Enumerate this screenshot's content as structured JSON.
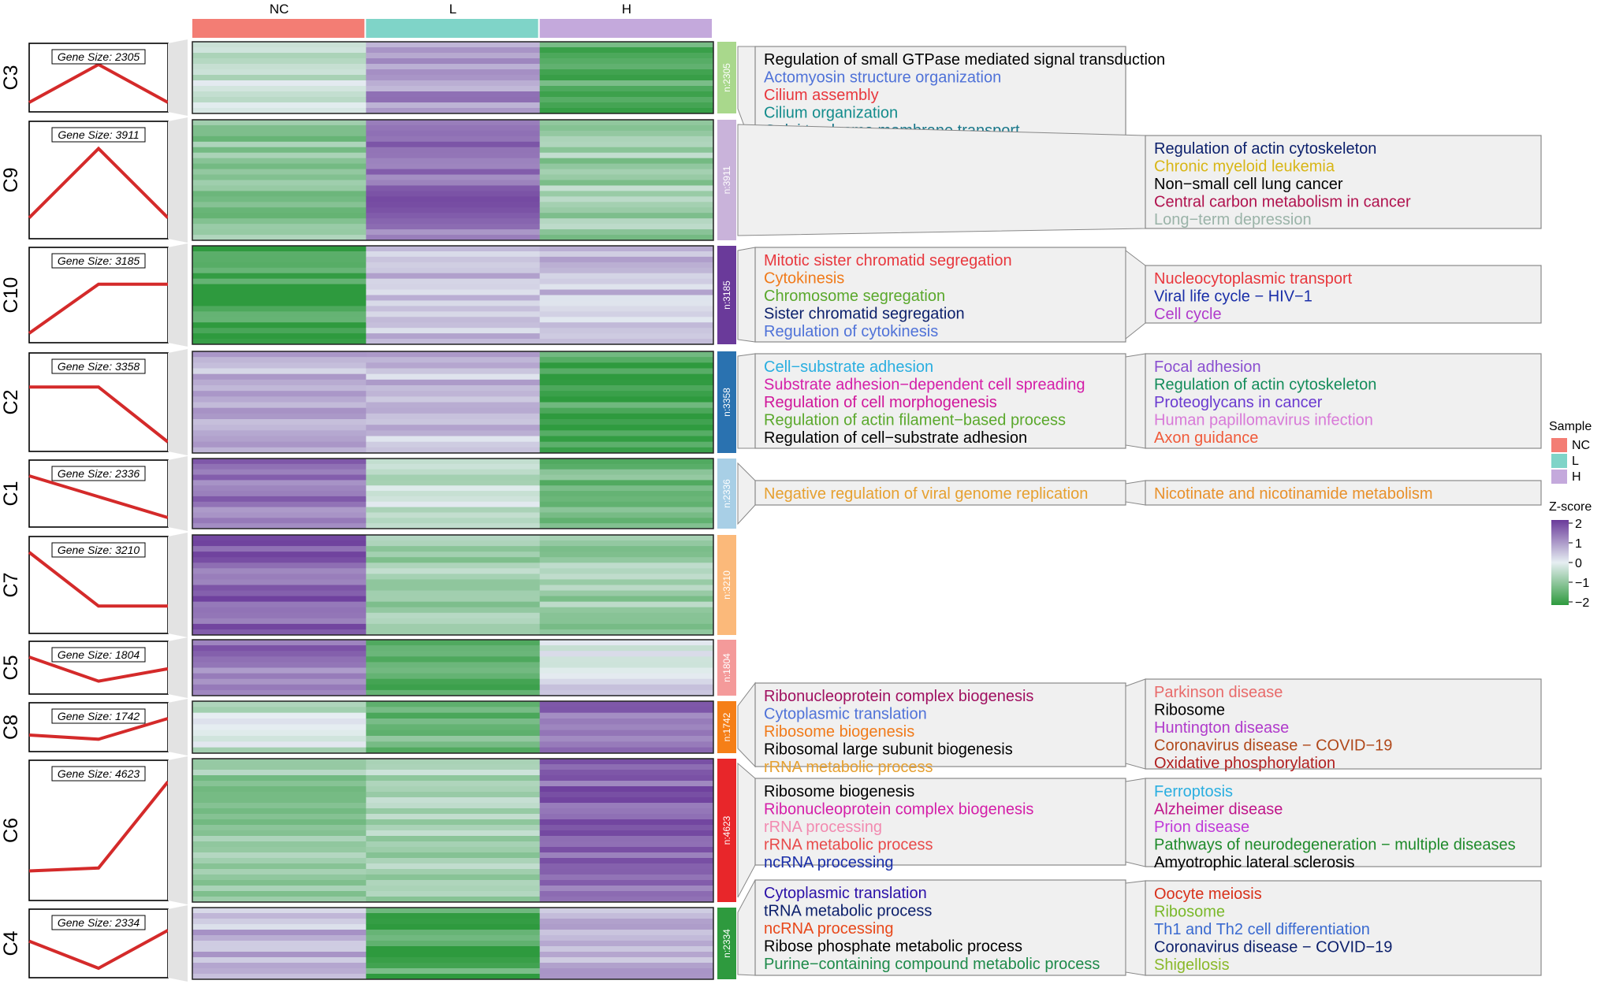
{
  "chart_data": {
    "type": "heatmap",
    "title": "",
    "columns": [
      "NC",
      "L",
      "H"
    ],
    "column_colors": [
      "#f37d74",
      "#7fd4c8",
      "#c4a9dc"
    ],
    "clusters": [
      {
        "label": "C3",
        "gene_size_text": "Gene Size: 2305",
        "n_text": "n:2305",
        "color": "#a9d88c",
        "pattern": [
          -2,
          1.5,
          -2
        ],
        "zscores": [
          -0.3,
          1.0,
          -1.6
        ],
        "go_terms": [
          {
            "text": "Regulation of small GTPase mediated signal transduction",
            "color": "#000000"
          },
          {
            "text": "Actomyosin structure organization",
            "color": "#4f72d8"
          },
          {
            "text": "Cilium assembly",
            "color": "#e8373d"
          },
          {
            "text": "Cilium organization",
            "color": "#138c8c"
          },
          {
            "text": "Golgi to plasma membrane transport",
            "color": "#19778a"
          }
        ],
        "kegg_terms": []
      },
      {
        "label": "C9",
        "gene_size_text": "Gene Size: 3911",
        "n_text": "n:3911",
        "color": "#c9b3da",
        "pattern": [
          -1.5,
          1.5,
          -1.5
        ],
        "zscores": [
          -1.0,
          1.4,
          -0.8
        ],
        "go_terms": [],
        "kegg_terms": [
          {
            "text": "Regulation of actin cytoskeleton",
            "color": "#0b1f6b"
          },
          {
            "text": "Chronic myeloid leukemia",
            "color": "#d8b616"
          },
          {
            "text": "Non−small cell lung cancer",
            "color": "#000000"
          },
          {
            "text": "Central carbon metabolism in cancer",
            "color": "#b0124e"
          },
          {
            "text": "Long−term depression",
            "color": "#9ab3a8"
          }
        ]
      },
      {
        "label": "C10",
        "gene_size_text": "Gene Size: 3185",
        "n_text": "n:3185",
        "color": "#6a3a9a",
        "pattern": [
          -2,
          0.8,
          0.8
        ],
        "zscores": [
          -1.7,
          0.6,
          0.5
        ],
        "go_terms": [
          {
            "text": "Mitotic sister chromatid segregation",
            "color": "#e8373d"
          },
          {
            "text": "Cytokinesis",
            "color": "#f07a1a"
          },
          {
            "text": "Chromosome segregation",
            "color": "#5aa82c"
          },
          {
            "text": "Sister chromatid segregation",
            "color": "#0b1f6b"
          },
          {
            "text": "Regulation of cytokinesis",
            "color": "#4f72d8"
          }
        ],
        "kegg_terms": [
          {
            "text": "Nucleocytoplasmic transport",
            "color": "#e8373d"
          },
          {
            "text": "Viral life cycle − HIV−1",
            "color": "#1a2ea8"
          },
          {
            "text": "Cell cycle",
            "color": "#b03acb"
          }
        ]
      },
      {
        "label": "C2",
        "gene_size_text": "Gene Size: 3358",
        "n_text": "n:3358",
        "color": "#2a72b0",
        "pattern": [
          1,
          1,
          -2
        ],
        "zscores": [
          0.6,
          0.5,
          -1.7
        ],
        "go_terms": [
          {
            "text": "Cell−substrate adhesion",
            "color": "#29aee0"
          },
          {
            "text": "Substrate adhesion−dependent cell spreading",
            "color": "#d41ea8"
          },
          {
            "text": "Regulation of cell morphogenesis",
            "color": "#d0169a"
          },
          {
            "text": "Regulation of actin filament−based process",
            "color": "#5aa82c"
          },
          {
            "text": "Regulation of cell−substrate adhesion",
            "color": "#000000"
          }
        ],
        "kegg_terms": [
          {
            "text": "Focal adhesion",
            "color": "#8a4fd0"
          },
          {
            "text": "Regulation of actin cytoskeleton",
            "color": "#138c5a"
          },
          {
            "text": "Proteoglycans in cancer",
            "color": "#6a3ad0"
          },
          {
            "text": "Human papillomavirus infection",
            "color": "#d87ad8"
          },
          {
            "text": "Axon guidance",
            "color": "#f05a3a"
          }
        ]
      },
      {
        "label": "C1",
        "gene_size_text": "Gene Size: 2336",
        "n_text": "n:2336",
        "color": "#a8cfe6",
        "pattern": [
          2,
          0,
          -2
        ],
        "zscores": [
          1.3,
          -0.3,
          -1.2
        ],
        "go_terms": [
          {
            "text": "Negative regulation of viral genome replication",
            "color": "#e6a030"
          }
        ],
        "kegg_terms": [
          {
            "text": "Nicotinate and nicotinamide metabolism",
            "color": "#e8902a"
          }
        ]
      },
      {
        "label": "C7",
        "gene_size_text": "Gene Size: 3210",
        "n_text": "n:3210",
        "color": "#fbb97a",
        "pattern": [
          2,
          -1,
          -1
        ],
        "zscores": [
          1.5,
          -0.8,
          -0.8
        ],
        "go_terms": [],
        "kegg_terms": []
      },
      {
        "label": "C5",
        "gene_size_text": "Gene Size: 1804",
        "n_text": "n:1804",
        "color": "#f49a9a",
        "pattern": [
          2,
          -1.5,
          0.3
        ],
        "zscores": [
          1.3,
          -1.4,
          0.1
        ],
        "go_terms": [],
        "kegg_terms": []
      },
      {
        "label": "C8",
        "gene_size_text": "Gene Size: 1742",
        "n_text": "n:1742",
        "color": "#f57f17",
        "pattern": [
          -0.8,
          -1.5,
          2
        ],
        "zscores": [
          -0.3,
          -1.3,
          1.5
        ],
        "go_terms": [
          {
            "text": "Ribonucleoprotein complex biogenesis",
            "color": "#a01060"
          },
          {
            "text": "Cytoplasmic translation",
            "color": "#4f72d8"
          },
          {
            "text": "Ribosome biogenesis",
            "color": "#f07a1a"
          },
          {
            "text": "Ribosomal large subunit biogenesis",
            "color": "#000000"
          },
          {
            "text": "rRNA metabolic process",
            "color": "#e6a030"
          }
        ],
        "kegg_terms": [
          {
            "text": "Parkinson disease",
            "color": "#e86a6a"
          },
          {
            "text": "Ribosome",
            "color": "#000000"
          },
          {
            "text": "Huntington disease",
            "color": "#b03acb"
          },
          {
            "text": "Coronavirus disease − COVID−19",
            "color": "#b0481a"
          },
          {
            "text": "Oxidative phosphorylation",
            "color": "#b02020"
          }
        ]
      },
      {
        "label": "C6",
        "gene_size_text": "Gene Size: 4623",
        "n_text": "n:4623",
        "color": "#e8262a",
        "pattern": [
          -1.3,
          -1.2,
          1.8
        ],
        "zscores": [
          -0.9,
          -0.6,
          1.5
        ],
        "go_terms": [
          {
            "text": "Ribosome biogenesis",
            "color": "#000000"
          },
          {
            "text": "Ribonucleoprotein complex biogenesis",
            "color": "#d41ea8"
          },
          {
            "text": "rRNA processing",
            "color": "#f28ab0"
          },
          {
            "text": "rRNA metabolic process",
            "color": "#e84a4a"
          },
          {
            "text": "ncRNA processing",
            "color": "#1a2ea8"
          }
        ],
        "kegg_terms": [
          {
            "text": "Ferroptosis",
            "color": "#29aee0"
          },
          {
            "text": "Alzheimer disease",
            "color": "#c0168a"
          },
          {
            "text": "Prion disease",
            "color": "#c03ad8"
          },
          {
            "text": "Pathways of neurodegeneration − multiple diseases",
            "color": "#1e8a2a"
          },
          {
            "text": "Amyotrophic lateral sclerosis",
            "color": "#000000"
          }
        ]
      },
      {
        "label": "C4",
        "gene_size_text": "Gene Size: 2334",
        "n_text": "n:2334",
        "color": "#2e9a3e",
        "pattern": [
          0.5,
          -2,
          1.5
        ],
        "zscores": [
          0.6,
          -1.6,
          0.8
        ],
        "go_terms": [
          {
            "text": "Cytoplasmic translation",
            "color": "#2a10a8"
          },
          {
            "text": "tRNA metabolic process",
            "color": "#0b1f6b"
          },
          {
            "text": "ncRNA processing",
            "color": "#e8481a"
          },
          {
            "text": "Ribose phosphate metabolic process",
            "color": "#000000"
          },
          {
            "text": "Purine−containing compound metabolic process",
            "color": "#1e8a4a"
          }
        ],
        "kegg_terms": [
          {
            "text": "Oocyte meiosis",
            "color": "#d8301a"
          },
          {
            "text": "Ribosome",
            "color": "#7ab82a"
          },
          {
            "text": "Th1 and Th2 cell differentiation",
            "color": "#3a6ad0"
          },
          {
            "text": "Coronavirus disease − COVID−19",
            "color": "#0b1f6b"
          },
          {
            "text": "Shigellosis",
            "color": "#8ab82a"
          }
        ]
      }
    ],
    "legend": {
      "sample_title": "Sample",
      "samples": [
        {
          "label": "NC",
          "color": "#f37d74"
        },
        {
          "label": "L",
          "color": "#7fd4c8"
        },
        {
          "label": "H",
          "color": "#c4a9dc"
        }
      ],
      "zscore_title": "Z-score",
      "zscore_ticks": [
        "2",
        "1",
        "0",
        "−1",
        "−2"
      ],
      "zscore_range": [
        -2,
        2
      ],
      "zscore_colors": [
        "#2e9a3e",
        "#e6eef2",
        "#6a3a9a"
      ],
      "placement": "right"
    }
  }
}
